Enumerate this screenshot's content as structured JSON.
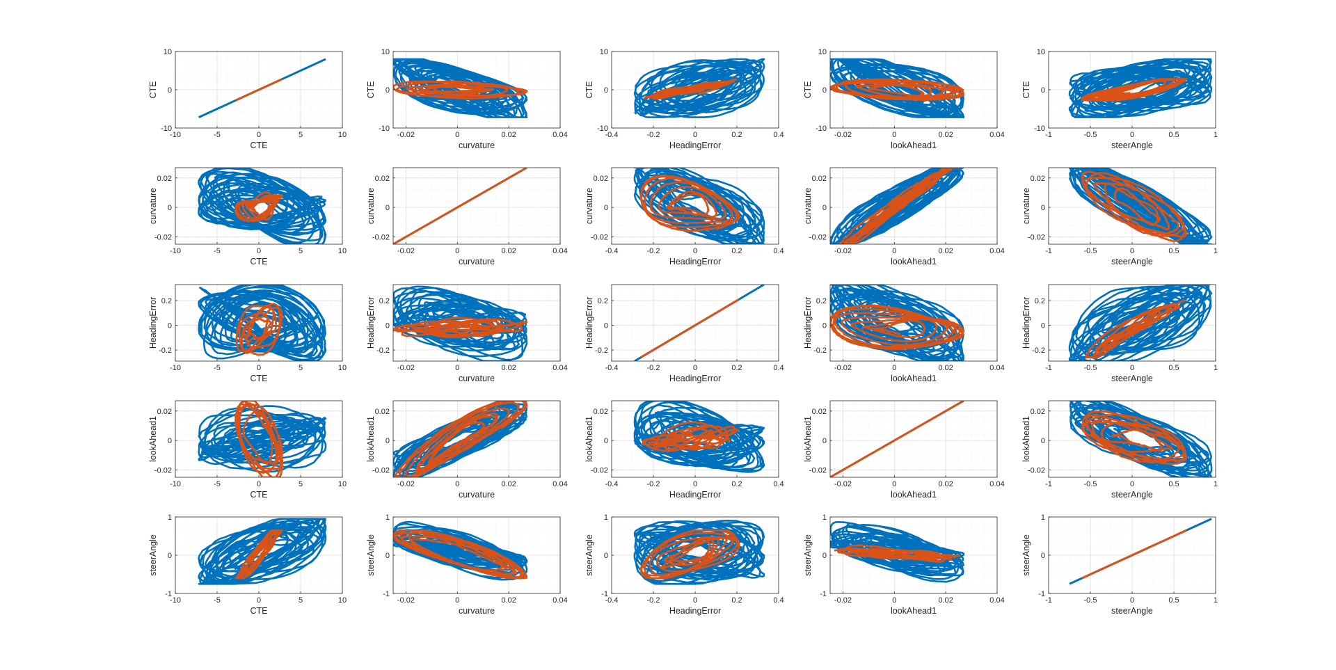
{
  "figure": {
    "variables": [
      "CTE",
      "curvature",
      "HeadingError",
      "lookAhead1",
      "steerAngle"
    ],
    "colors": {
      "series_1": "#0072BD",
      "series_2": "#D95319",
      "axes": "#262626",
      "grid": "#dcdcdc",
      "background": "#ffffff"
    }
  },
  "axes_def": {
    "CTE": {
      "lim": [
        -10,
        10
      ],
      "xticks": [
        -10,
        -5,
        0,
        5,
        10
      ],
      "xtick_labels": [
        "-10",
        "-5",
        "0",
        "5",
        "10"
      ],
      "yticks": [
        -10,
        0,
        10
      ],
      "ytick_labels": [
        "-10",
        "0",
        "10"
      ]
    },
    "curvature": {
      "xlim": [
        -0.025,
        0.04
      ],
      "ylim": [
        -0.025,
        0.027
      ],
      "xticks": [
        -0.02,
        0,
        0.02,
        0.04
      ],
      "xtick_labels": [
        "-0.02",
        "0",
        "0.02",
        "0.04"
      ],
      "yticks": [
        -0.02,
        0,
        0.02
      ],
      "ytick_labels": [
        "-0.02",
        "0",
        "0.02"
      ]
    },
    "HeadingError": {
      "xlim": [
        -0.4,
        0.4
      ],
      "ylim": [
        -0.29,
        0.33
      ],
      "xticks": [
        -0.4,
        -0.2,
        0,
        0.2,
        0.4
      ],
      "xtick_labels": [
        "-0.4",
        "-0.2",
        "0",
        "0.2",
        "0.4"
      ],
      "yticks": [
        -0.2,
        0,
        0.2
      ],
      "ytick_labels": [
        "-0.2",
        "0",
        "0.2"
      ]
    },
    "lookAhead1": {
      "xlim": [
        -0.025,
        0.04
      ],
      "ylim": [
        -0.025,
        0.027
      ],
      "xticks": [
        -0.02,
        0,
        0.02,
        0.04
      ],
      "xtick_labels": [
        "-0.02",
        "0",
        "0.02",
        "0.04"
      ],
      "yticks": [
        -0.02,
        0,
        0.02
      ],
      "ytick_labels": [
        "-0.02",
        "0",
        "0.02"
      ]
    },
    "steerAngle": {
      "xlim": [
        -1,
        1
      ],
      "ylim": [
        -1,
        1
      ],
      "xticks": [
        -1,
        -0.5,
        0,
        0.5,
        1
      ],
      "xtick_labels": [
        "-1",
        "-0.5",
        "0",
        "0.5",
        "1"
      ],
      "yticks": [
        -1,
        0,
        1
      ],
      "ytick_labels": [
        "-1",
        "0",
        "1"
      ]
    }
  },
  "chart_data": {
    "type": "scatter",
    "layout": "scatter-matrix",
    "variables": [
      "CTE",
      "curvature",
      "HeadingError",
      "lookAhead1",
      "steerAngle"
    ],
    "grid": true,
    "series": [
      {
        "ranges": {
          "CTE": [
            -7.2,
            8
          ],
          "curvature": [
            -0.025,
            0.027
          ],
          "HeadingError": [
            -0.29,
            0.33
          ],
          "lookAhead1": [
            -0.025,
            0.027
          ],
          "steerAngle": [
            -0.75,
            0.95
          ]
        }
      },
      {
        "ranges": {
          "CTE": [
            -2.8,
            2.8
          ],
          "curvature": [
            -0.025,
            0.027
          ],
          "HeadingError": [
            -0.26,
            0.21
          ],
          "lookAhead1": [
            -0.025,
            0.027
          ],
          "steerAngle": [
            -0.6,
            0.65
          ]
        }
      }
    ]
  }
}
